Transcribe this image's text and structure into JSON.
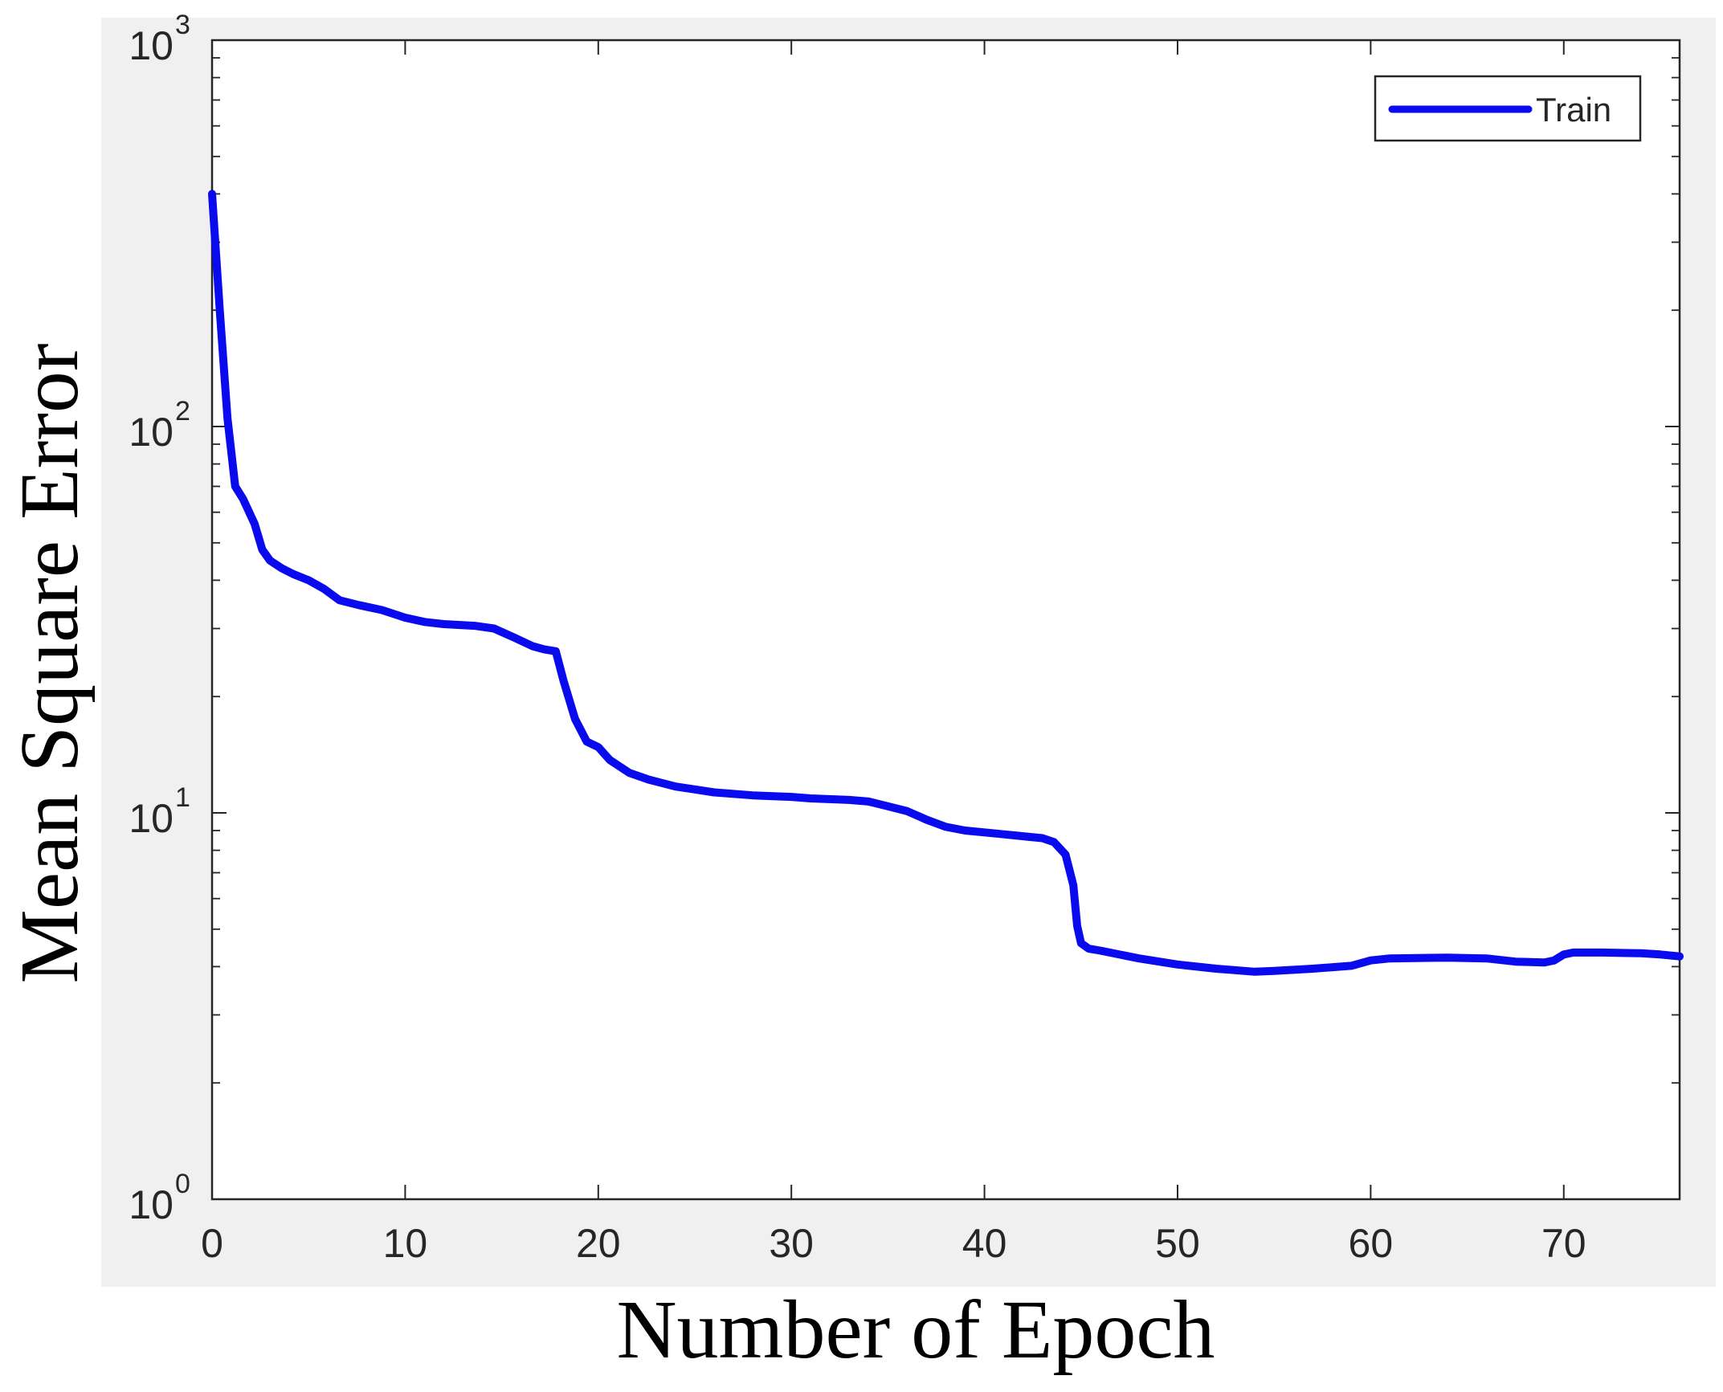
{
  "chart_data": {
    "type": "line",
    "xlabel": "Number of Epoch",
    "ylabel": "Mean Square Error",
    "xlim": [
      0,
      76
    ],
    "ylim": [
      1,
      1000
    ],
    "yscale": "log",
    "grid": false,
    "legend_position": "top-right",
    "xticks": [
      0,
      10,
      20,
      30,
      40,
      50,
      60,
      70
    ],
    "xtick_labels": [
      "0",
      "10",
      "20",
      "30",
      "40",
      "50",
      "60",
      "70"
    ],
    "yticks": [
      1,
      10,
      100,
      1000
    ],
    "ytick_labels": [
      {
        "base": "10",
        "exp": "0"
      },
      {
        "base": "10",
        "exp": "1"
      },
      {
        "base": "10",
        "exp": "2"
      },
      {
        "base": "10",
        "exp": "3"
      }
    ],
    "series": [
      {
        "name": "Train",
        "color": "#0a0aee",
        "x": [
          0,
          0.4,
          0.8,
          1.2,
          1.6,
          2.2,
          2.6,
          3.0,
          3.6,
          4.2,
          5.0,
          5.8,
          6.6,
          7.6,
          8.8,
          10.0,
          11.0,
          12.0,
          13.6,
          14.6,
          15.6,
          16.6,
          17.2,
          17.8,
          18.2,
          18.8,
          19.4,
          20.0,
          20.6,
          21.6,
          22.6,
          24.0,
          25.0,
          26.0,
          28.0,
          30.0,
          31.0,
          33.0,
          34.0,
          35.0,
          36.0,
          37.0,
          38.0,
          39.0,
          40.0,
          41.0,
          42.0,
          43.0,
          43.6,
          44.2,
          44.6,
          44.8,
          45.0,
          45.4,
          46.0,
          48.0,
          50.0,
          52.0,
          54.0,
          55.0,
          57.0,
          59.0,
          60.0,
          61.0,
          64.0,
          66.0,
          67.5,
          69.0,
          69.5,
          70.0,
          70.5,
          72.0,
          74.0,
          75.0,
          76.0
        ],
        "y": [
          400,
          200,
          105,
          70,
          65,
          56,
          48,
          45,
          43,
          41.5,
          40,
          38,
          35.5,
          34.5,
          33.5,
          32,
          31.2,
          30.8,
          30.5,
          30,
          28.5,
          27,
          26.5,
          26.2,
          22,
          17.5,
          15.3,
          14.8,
          13.7,
          12.7,
          12.2,
          11.7,
          11.5,
          11.3,
          11.1,
          11,
          10.9,
          10.8,
          10.7,
          10.4,
          10.1,
          9.6,
          9.2,
          9.0,
          8.9,
          8.8,
          8.7,
          8.6,
          8.4,
          7.8,
          6.5,
          5.1,
          4.6,
          4.45,
          4.4,
          4.2,
          4.05,
          3.95,
          3.88,
          3.9,
          3.95,
          4.02,
          4.15,
          4.2,
          4.22,
          4.2,
          4.12,
          4.1,
          4.15,
          4.3,
          4.35,
          4.35,
          4.33,
          4.3,
          4.25
        ]
      }
    ]
  }
}
